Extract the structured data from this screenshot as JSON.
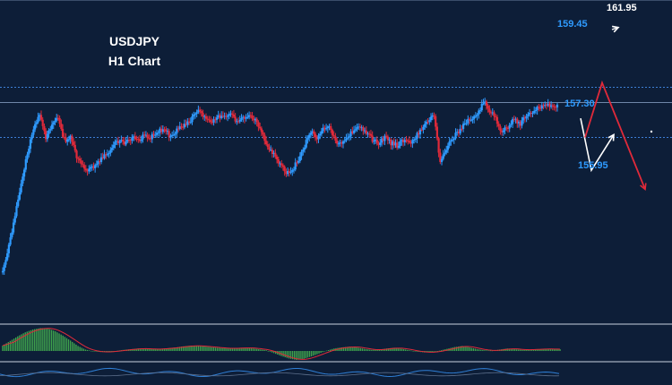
{
  "chart_data": {
    "type": "candlestick",
    "title": "USDJPY",
    "subtitle": "H1 Chart",
    "colors": {
      "background": "#0d1e38",
      "bull": "#2f9bff",
      "bear": "#e02a3a",
      "level_line": "#3d7fd6",
      "forecast_up": "#ffffff",
      "forecast_down": "#e02a3a",
      "osc_pos": "#3fa34d",
      "osc_signal": "#e02a3a",
      "osc2_line": "#2f7fd6"
    },
    "price_range": [
      152.8,
      162.3
    ],
    "price_path": [
      152.8,
      153.6,
      154.8,
      155.9,
      157.0,
      157.9,
      158.4,
      157.6,
      158.1,
      158.3,
      157.5,
      157.6,
      156.9,
      156.5,
      156.4,
      156.6,
      156.8,
      157.0,
      157.3,
      157.5,
      157.4,
      157.6,
      157.5,
      157.7,
      157.6,
      157.8,
      157.9,
      157.7,
      157.8,
      158.0,
      158.1,
      158.4,
      158.6,
      158.3,
      158.2,
      158.4,
      158.3,
      158.4,
      158.2,
      158.3,
      158.4,
      158.2,
      157.8,
      157.3,
      157.0,
      156.6,
      156.3,
      156.4,
      156.8,
      157.3,
      157.8,
      157.6,
      157.9,
      158.0,
      157.5,
      157.3,
      157.6,
      157.9,
      158.0,
      157.8,
      157.5,
      157.4,
      157.6,
      157.4,
      157.3,
      157.5,
      157.4,
      157.6,
      157.9,
      158.2,
      158.4,
      156.7,
      157.2,
      157.6,
      157.8,
      158.1,
      158.3,
      158.4,
      158.9,
      158.6,
      158.3,
      157.8,
      158.0,
      158.3,
      158.1,
      158.4,
      158.5,
      158.7,
      158.8,
      158.7,
      158.8
    ],
    "levels": [
      {
        "label": "159.45",
        "price": 159.45,
        "color": "#2f9bff"
      },
      {
        "label": "157.30",
        "price": 157.3,
        "color": "#2f9bff"
      },
      {
        "label": "155.95",
        "price": 155.95,
        "color": "#2f9bff"
      },
      {
        "label": "161.95",
        "price": 161.95,
        "color": "#ffffff"
      }
    ],
    "horizontal_lines": [
      {
        "price": 159.45,
        "style": "dotted"
      },
      {
        "price": 158.9,
        "style": "solid"
      },
      {
        "price": 157.6,
        "style": "dotted"
      }
    ],
    "forecast_up": [
      158.3,
      156.4,
      157.7
    ],
    "forecast_up_arrow_to": 161.95,
    "forecast_down": [
      157.6,
      159.6,
      155.7
    ]
  },
  "oscillator": {
    "type": "histogram",
    "values": [
      1.5,
      2.8,
      4.1,
      5.2,
      6.0,
      6.4,
      6.3,
      5.5,
      4.3,
      2.9,
      1.4,
      0.4,
      -0.1,
      -0.3,
      -0.2,
      0.0,
      0.3,
      0.5,
      0.7,
      0.6,
      0.5,
      0.6,
      0.8,
      1.0,
      1.3,
      1.5,
      1.4,
      1.2,
      1.0,
      0.8,
      0.7,
      0.8,
      0.9,
      0.8,
      0.5,
      0.2,
      -0.6,
      -1.4,
      -2.1,
      -2.5,
      -2.2,
      -1.5,
      -0.7,
      0.1,
      0.7,
      1.0,
      1.2,
      1.0,
      0.6,
      0.3,
      0.4,
      0.7,
      0.9,
      0.6,
      0.2,
      -0.2,
      -0.4,
      -0.3,
      0.1,
      0.6,
      1.1,
      1.4,
      1.0,
      0.5,
      0.2,
      0.1,
      0.4,
      0.7,
      0.5,
      0.3,
      0.4,
      0.5,
      0.6,
      0.5,
      0.5
    ]
  }
}
